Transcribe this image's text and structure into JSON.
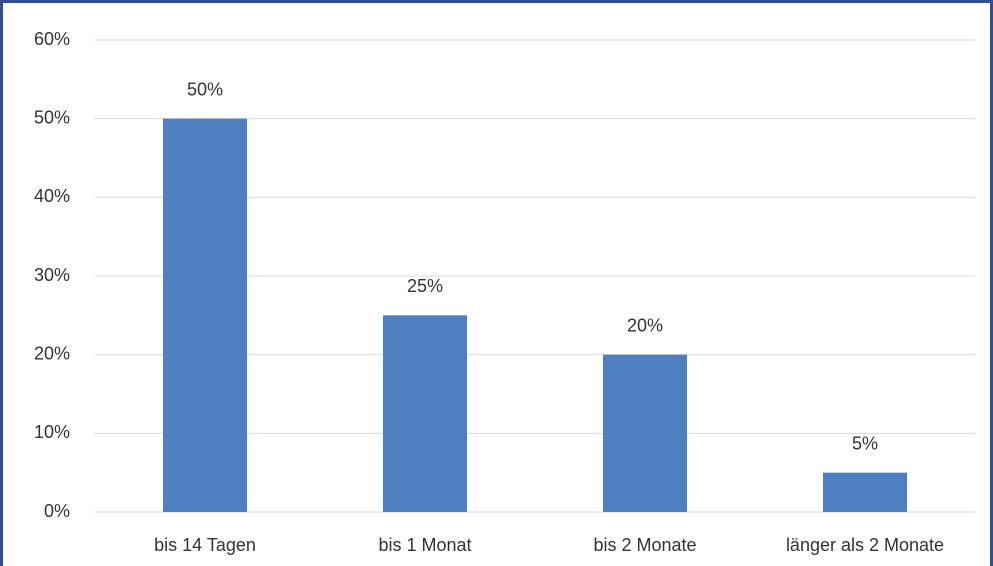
{
  "chart_data": {
    "type": "bar",
    "categories": [
      "bis 14 Tagen",
      "bis 1 Monat",
      "bis 2 Monate",
      "länger als 2 Monate"
    ],
    "values": [
      50,
      25,
      20,
      5
    ],
    "value_labels": [
      "50%",
      "25%",
      "20%",
      "5%"
    ],
    "color": "#4e7fc1",
    "ylim": [
      0,
      60
    ],
    "yticks": [
      {
        "value": 0,
        "label": "0%"
      },
      {
        "value": 10,
        "label": "10%"
      },
      {
        "value": 20,
        "label": "20%"
      },
      {
        "value": 30,
        "label": "30%"
      },
      {
        "value": 40,
        "label": "40%"
      },
      {
        "value": 50,
        "label": "50%"
      },
      {
        "value": 60,
        "label": "60%"
      }
    ],
    "grid": true
  }
}
